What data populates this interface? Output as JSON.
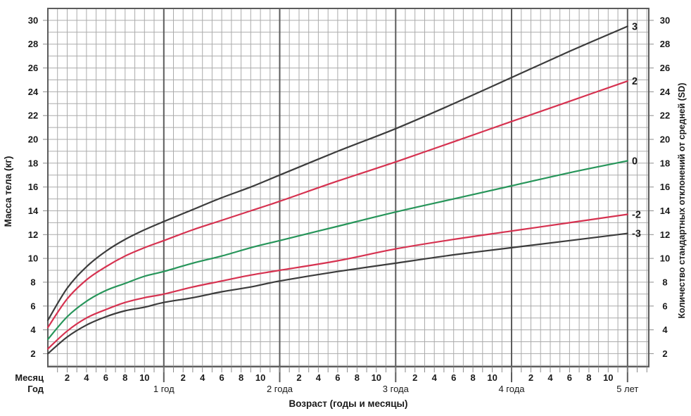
{
  "chart_data": {
    "type": "line",
    "description": "Weight-for-age growth reference chart, SD (z-score) curves, 0-5 years",
    "x_axis": {
      "label": "Возраст (годы и месяцы)",
      "unit_row_label": "Месяц",
      "year_row_label": "Год",
      "month_tick_labels": [
        "2",
        "4",
        "6",
        "8",
        "10"
      ],
      "year_tick_labels": [
        "1 год",
        "2 года",
        "3 года",
        "4 года",
        "5 лет"
      ],
      "year_tick_months": [
        12,
        24,
        36,
        48,
        60
      ],
      "domain_months": [
        0,
        62.2
      ],
      "minor_grid_step_months": 1
    },
    "y_axis_left": {
      "label": "Масса тела (кг)",
      "tick_values": [
        2,
        4,
        6,
        8,
        10,
        12,
        14,
        16,
        18,
        20,
        22,
        24,
        26,
        28,
        30
      ],
      "domain": [
        0.9,
        31
      ],
      "minor_grid_step_kg": 1
    },
    "y_axis_right": {
      "label": "Количество стандартных отклонений от средней (SD)",
      "tick_values": [
        2,
        4,
        6,
        8,
        10,
        12,
        14,
        16,
        18,
        20,
        22,
        24,
        26,
        28,
        30
      ]
    },
    "x_months": [
      0,
      2,
      4,
      6,
      8,
      10,
      12,
      15,
      18,
      21,
      24,
      30,
      36,
      42,
      48,
      54,
      60
    ],
    "series": [
      {
        "name": "sd3",
        "label": "3",
        "color": "#3c3c3c",
        "values": [
          4.8,
          7.5,
          9.3,
          10.6,
          11.6,
          12.4,
          13.1,
          14.1,
          15.1,
          16.0,
          17.0,
          19.0,
          20.9,
          23.0,
          25.2,
          27.4,
          29.5
        ]
      },
      {
        "name": "sd2",
        "label": "2",
        "color": "#d63250",
        "values": [
          4.2,
          6.6,
          8.2,
          9.3,
          10.2,
          10.9,
          11.5,
          12.4,
          13.2,
          14.0,
          14.8,
          16.5,
          18.1,
          19.8,
          21.5,
          23.2,
          24.9
        ]
      },
      {
        "name": "sd0",
        "label": "0",
        "color": "#27955a",
        "values": [
          3.2,
          5.1,
          6.4,
          7.3,
          7.9,
          8.5,
          8.9,
          9.6,
          10.2,
          10.9,
          11.5,
          12.7,
          13.9,
          15.0,
          16.1,
          17.2,
          18.2
        ]
      },
      {
        "name": "sd-2",
        "label": "-2",
        "color": "#d63250",
        "values": [
          2.4,
          3.9,
          5.0,
          5.7,
          6.3,
          6.7,
          7.0,
          7.6,
          8.1,
          8.6,
          9.0,
          9.8,
          10.8,
          11.6,
          12.3,
          13.0,
          13.7
        ]
      },
      {
        "name": "sd-3",
        "label": "-3",
        "color": "#3c3c3c",
        "values": [
          2.0,
          3.4,
          4.4,
          5.1,
          5.6,
          5.9,
          6.3,
          6.7,
          7.2,
          7.6,
          8.1,
          8.9,
          9.6,
          10.3,
          10.9,
          11.5,
          12.1
        ]
      }
    ],
    "grid": {
      "on": true,
      "minor_color": "#ababab",
      "major_color": "#5c5c5c",
      "tick_color": "#8a8a8a",
      "background": "#ffffff"
    },
    "legend_position": "curve-end-labels-right"
  }
}
